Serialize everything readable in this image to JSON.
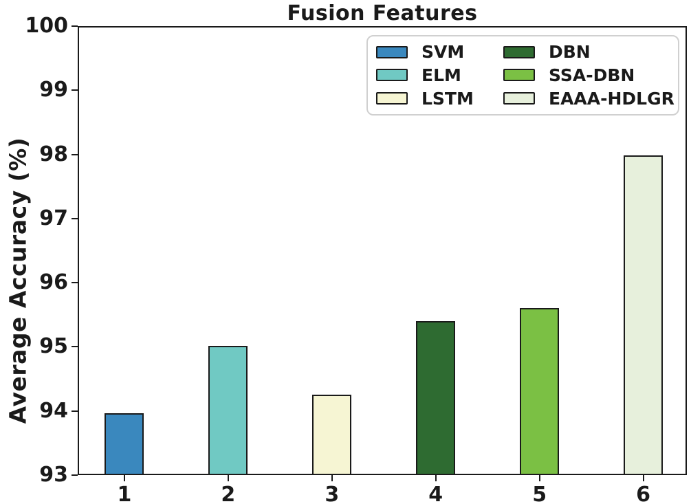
{
  "chart_data": {
    "type": "bar",
    "title": "Fusion Features",
    "xlabel": "",
    "ylabel": "Average Accuracy (%)",
    "categories": [
      "1",
      "2",
      "3",
      "4",
      "5",
      "6"
    ],
    "bars": [
      {
        "category": "1",
        "name": "SVM",
        "value": 93.97,
        "color": "#3a88be"
      },
      {
        "category": "2",
        "name": "ELM",
        "value": 95.02,
        "color": "#70c9c3"
      },
      {
        "category": "3",
        "name": "LSTM",
        "value": 94.25,
        "color": "#f6f5d3"
      },
      {
        "category": "4",
        "name": "DBN",
        "value": 95.4,
        "color": "#2e6b31"
      },
      {
        "category": "5",
        "name": "SSA-DBN",
        "value": 95.61,
        "color": "#7bc044"
      },
      {
        "category": "6",
        "name": "EAAA-HDLGR",
        "value": 97.98,
        "color": "#e7f0dc"
      }
    ],
    "ylim": [
      93,
      100
    ],
    "yticks": [
      93,
      94,
      95,
      96,
      97,
      98,
      99,
      100
    ],
    "xlim": [
      0.55,
      6.42
    ],
    "grid": false,
    "bar_edge_color": "#1a1a1a",
    "axis_color": "#1a1a1a",
    "legend_position": "upper-right-inside",
    "legend_columns": 2,
    "legend_order": "column-major"
  }
}
